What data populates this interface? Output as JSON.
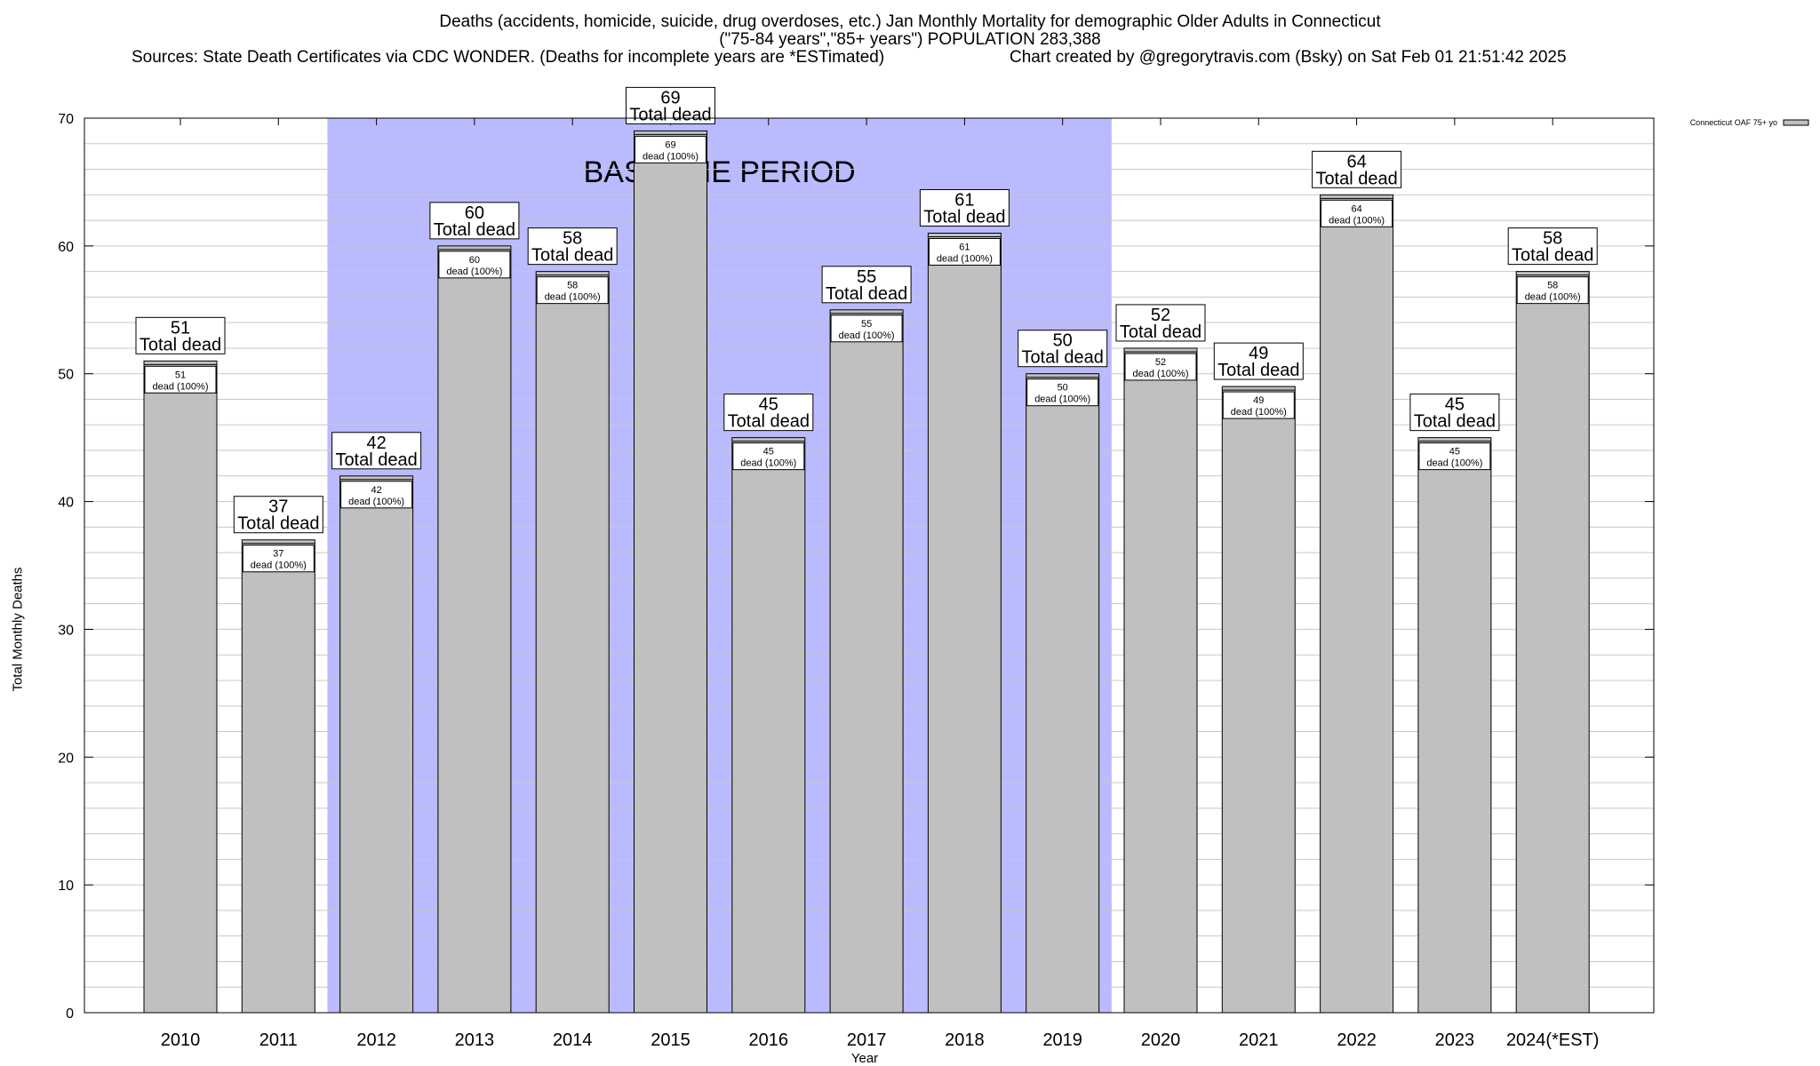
{
  "header": {
    "line1": "Deaths (accidents, homicide, suicide, drug overdoses, etc.) Jan Monthly Mortality for demographic Older Adults in Connecticut",
    "line2": "(\"75-84 years\",\"85+ years\") POPULATION 283,388",
    "line3_left": "Sources: State Death Certificates via CDC WONDER. (Deaths for incomplete years are *ESTimated)",
    "line3_right": "Chart created by @gregorytravis.com (Bsky) on Sat Feb 01 21:51:42 2025"
  },
  "chart_data": {
    "type": "bar",
    "categories": [
      "2010",
      "2011",
      "2012",
      "2013",
      "2014",
      "2015",
      "2016",
      "2017",
      "2018",
      "2019",
      "2020",
      "2021",
      "2022",
      "2023",
      "2024(*EST)"
    ],
    "series": [
      {
        "name": "Connecticut OAF 75+ yo",
        "values": [
          51,
          37,
          42,
          60,
          58,
          69,
          45,
          55,
          61,
          50,
          52,
          49,
          64,
          45,
          58
        ]
      }
    ],
    "value_label_suffix": "Total dead",
    "inner_label_suffix": "dead (100%)",
    "xlabel": "Year",
    "ylabel": "Total Monthly Deaths",
    "ylim": [
      0,
      70
    ],
    "yticks": [
      0,
      10,
      20,
      30,
      40,
      50,
      60,
      70
    ],
    "grid": true,
    "legend_position": "top-right",
    "baseline": {
      "label": "BASELINE PERIOD",
      "from": "2012",
      "to": "2019",
      "color": "#babaff"
    },
    "colors": {
      "bar_fill": "#c0c0c0",
      "bar_stroke": "#000000",
      "grid": "#c8c8c8"
    }
  }
}
